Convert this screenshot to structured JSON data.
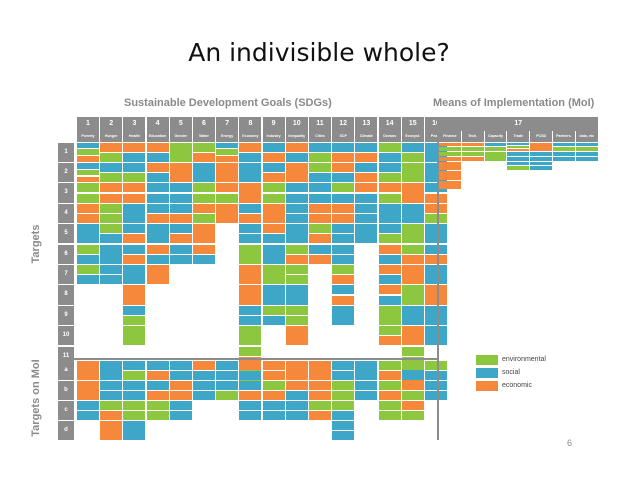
{
  "title": "An indivisible whole?",
  "page_number": "6",
  "sdg_heading": "Sustainable Development Goals (SDGs)",
  "moi_heading": "Means of Implementation (MoI)",
  "side_targets": "Targets",
  "side_moi": "Targets on MoI",
  "colors": {
    "environmental": "#8dc63f",
    "social": "#3ea7c8",
    "economic": "#f5883a",
    "header": "#8c8c8c"
  },
  "legend": [
    {
      "key": "environmental",
      "label": "environmental"
    },
    {
      "key": "social",
      "label": "social"
    },
    {
      "key": "economic",
      "label": "economic"
    }
  ],
  "goals": [
    {
      "num": "1",
      "name": "Poverty"
    },
    {
      "num": "2",
      "name": "Hunger"
    },
    {
      "num": "3",
      "name": "Health"
    },
    {
      "num": "4",
      "name": "Education"
    },
    {
      "num": "5",
      "name": "Gender"
    },
    {
      "num": "6",
      "name": "Water"
    },
    {
      "num": "7",
      "name": "Energy"
    },
    {
      "num": "8",
      "name": "Economy"
    },
    {
      "num": "9",
      "name": "Industry"
    },
    {
      "num": "10",
      "name": "Inequality"
    },
    {
      "num": "11",
      "name": "Cities"
    },
    {
      "num": "12",
      "name": "SCP"
    },
    {
      "num": "13",
      "name": "Climate"
    },
    {
      "num": "14",
      "name": "Oceans"
    },
    {
      "num": "15",
      "name": "Ecosyst."
    },
    {
      "num": "16",
      "name": "Peace"
    }
  ],
  "moi_goal": {
    "num": "17",
    "subs": [
      "Finance",
      "Tech.",
      "Capacity",
      "Trade",
      "PCSD",
      "Partners.",
      "data, etc"
    ]
  },
  "target_rows": [
    "1",
    "2",
    "3",
    "4",
    "5",
    "6",
    "7",
    "8",
    "9",
    "10",
    "11"
  ],
  "moi_rows": [
    "a",
    "b",
    "c",
    "d"
  ],
  "sdg_targets": [
    [
      "sec",
      "sec",
      "ee",
      "cc",
      "s",
      "es",
      "es"
    ],
    [
      "ce",
      "se",
      "cc",
      "ee",
      "es",
      "s",
      "ss"
    ],
    [
      "cs",
      "se",
      "cc",
      "s",
      "sc",
      "sc",
      "s",
      "c",
      "se",
      "e"
    ],
    [
      "cs",
      "cs",
      "ss",
      "sc",
      "s",
      "cs",
      "c"
    ],
    [
      "e",
      "c",
      "ss",
      "sc",
      "sc",
      "ss"
    ],
    [
      "ec",
      "s",
      "ee",
      "ce",
      "c",
      "cs"
    ],
    [
      "sec",
      "c",
      "ce",
      "c"
    ],
    [
      "cs",
      "s",
      "c",
      "sc",
      "ss",
      "e",
      "c",
      "c",
      "ss",
      "e",
      "ec",
      "e"
    ],
    [
      "sc",
      "sc",
      "ee",
      "c",
      "cs",
      "s",
      "e",
      "s",
      "es"
    ],
    [
      "cs",
      "c",
      "ss",
      "ss",
      "s",
      "ec",
      "ee",
      "s",
      "ee",
      "c"
    ],
    [
      "se",
      "es",
      "ss",
      "cc",
      "ec",
      "sc"
    ],
    [
      "sc",
      "cs",
      "es",
      "cc",
      "ss",
      "ss",
      "ec",
      "sc",
      "s"
    ],
    [
      "sc",
      "sc",
      "cs",
      "ss",
      "s"
    ],
    [
      "es",
      "se",
      "ce",
      "s",
      "se",
      "cs",
      "cs",
      "cs",
      "e",
      "ec"
    ],
    [
      "se",
      "e",
      "c",
      "s",
      "e",
      "ec",
      "c",
      "e",
      "s",
      "c",
      "ee",
      "sc"
    ],
    [
      "s",
      "s",
      "sc",
      "ce",
      "s",
      "sc",
      "s",
      "c",
      "s",
      "s"
    ]
  ],
  "sdg_moi": [
    [
      "c",
      "c",
      "ss"
    ],
    [
      "s",
      "ss",
      "ec",
      "c"
    ],
    [
      "se",
      "ss",
      "ee",
      "s"
    ],
    [
      "sc",
      "sc",
      "ee"
    ],
    [
      "ss",
      "cc",
      "ss"
    ],
    [
      "cs",
      "ss"
    ],
    [
      "ss",
      "se"
    ],
    [
      "cs",
      "sc",
      "ss"
    ],
    [
      "cc",
      "ec",
      "ss"
    ],
    [
      "c",
      "cs",
      "ss"
    ],
    [
      "c",
      "cc",
      "ec"
    ],
    [
      "ss",
      "ee",
      "es",
      "ss"
    ],
    [
      "s",
      "ss"
    ],
    [
      "ec",
      "ec",
      "ee"
    ],
    [
      "es",
      "ce",
      "ce"
    ],
    [
      "es",
      "ss"
    ]
  ],
  "moi_targets": [
    [
      "ce",
      "ec",
      "c",
      "c",
      "c"
    ],
    [
      "ce",
      "ec"
    ],
    [
      "se",
      "e"
    ],
    [
      "sec",
      "ss",
      "se"
    ],
    [
      "c",
      "ss",
      "ss"
    ],
    [
      "se",
      "ss"
    ],
    [
      "se",
      "ss"
    ]
  ]
}
